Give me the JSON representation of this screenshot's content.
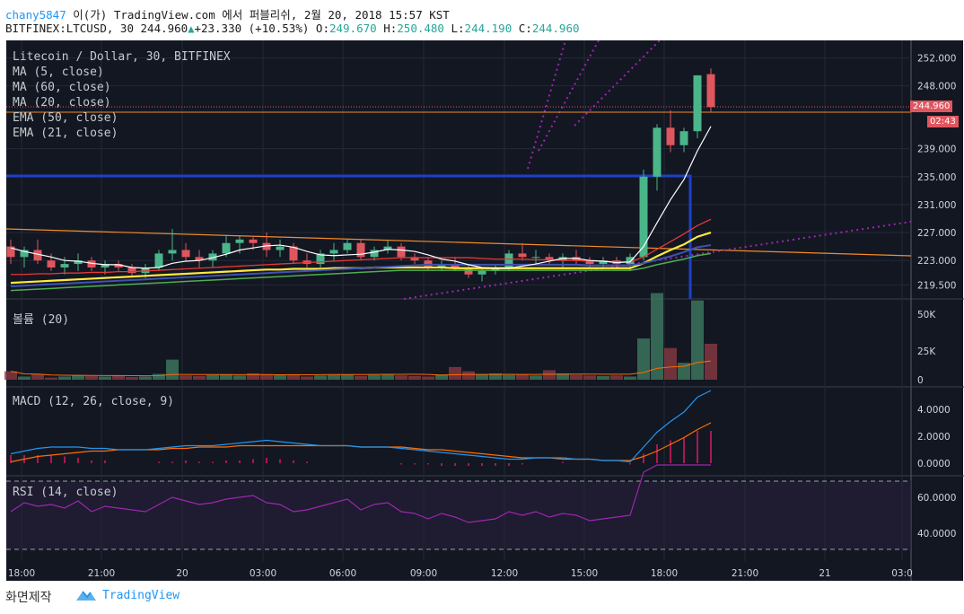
{
  "header": {
    "user": "chany5847",
    "title_rest": " 이(가) TradingView.com 에서 퍼블리쉬, 2월 20, 2018 15:57 KST",
    "symbol": "BITFINEX:LTCUSD, 30",
    "last": "244.960",
    "change": "+23.330 (+10.53%)",
    "open_label": "O:",
    "open": "249.670",
    "high_label": "H:",
    "high": "250.480",
    "low_label": "L:",
    "low": "244.190",
    "close_label": "C:",
    "close": "244.960"
  },
  "main_legend": [
    "Litecoin / Dollar, 30, BITFINEX",
    "MA (5, close)",
    "MA (60, close)",
    "MA (20, close)",
    "EMA (50, close)",
    "EMA (21, close)"
  ],
  "price_axis": [
    "252.000",
    "248.000",
    "244.960",
    "239.000",
    "235.000",
    "231.000",
    "227.000",
    "223.000",
    "219.500"
  ],
  "price_tag": "244.960",
  "countdown_tag": "02:43",
  "volume": {
    "label": "볼륨 (20)",
    "ticks": [
      "50K",
      "25K",
      "0"
    ]
  },
  "macd": {
    "label": "MACD (12, 26, close, 9)",
    "ticks": [
      "4.0000",
      "2.0000",
      "0.0000"
    ]
  },
  "rsi": {
    "label": "RSI (14, close)",
    "ticks": [
      "60.0000",
      "40.0000"
    ]
  },
  "time_axis": [
    "18:00",
    "21:00",
    "20",
    "03:00",
    "06:00",
    "09:00",
    "12:00",
    "15:00",
    "18:00",
    "21:00",
    "21",
    "03:0"
  ],
  "footer": {
    "screenshot_label": "화면제작",
    "brand": "TradingView"
  },
  "colors": {
    "background": "#131722",
    "up": "#4bb58a",
    "down": "#e0565f",
    "ma5": "#ffffff",
    "ma20": "#e53935",
    "ma60": "#3f51b5",
    "ema21": "#ffeb3b",
    "ema50": "#4caf50",
    "box": "#1e40c8",
    "trend": "#f28c28",
    "fib": "#9c27b0",
    "macd": "#2196f3",
    "signal": "#ff6d00",
    "rsi": "#9c27b0"
  },
  "chart_data": {
    "type": "candlestick",
    "symbol": "BITFINEX:LTCUSD",
    "interval": "30",
    "ohlc": [
      [
        225.0,
        226.0,
        222.5,
        223.5
      ],
      [
        223.5,
        225.0,
        222.0,
        224.5
      ],
      [
        224.5,
        226.0,
        222.5,
        223.0
      ],
      [
        223.0,
        224.0,
        221.5,
        222.0
      ],
      [
        222.0,
        223.5,
        221.0,
        222.5
      ],
      [
        222.5,
        224.0,
        221.5,
        223.0
      ],
      [
        223.0,
        223.5,
        221.5,
        222.0
      ],
      [
        222.0,
        223.0,
        221.0,
        222.5
      ],
      [
        222.5,
        223.0,
        221.5,
        222.0
      ],
      [
        222.0,
        222.5,
        220.8,
        221.2
      ],
      [
        221.2,
        222.5,
        220.5,
        222.0
      ],
      [
        222.0,
        224.5,
        221.5,
        224.0
      ],
      [
        224.0,
        227.5,
        223.0,
        224.5
      ],
      [
        224.5,
        225.5,
        223.0,
        223.5
      ],
      [
        223.5,
        224.5,
        222.0,
        223.0
      ],
      [
        223.0,
        224.5,
        222.0,
        224.0
      ],
      [
        224.0,
        226.5,
        223.5,
        225.5
      ],
      [
        225.5,
        226.5,
        224.0,
        226.0
      ],
      [
        226.0,
        226.5,
        224.5,
        225.5
      ],
      [
        225.5,
        227.0,
        223.5,
        224.5
      ],
      [
        224.5,
        226.0,
        223.5,
        225.0
      ],
      [
        225.0,
        225.5,
        222.5,
        223.0
      ],
      [
        223.0,
        224.0,
        222.0,
        222.5
      ],
      [
        222.5,
        224.5,
        222.0,
        224.0
      ],
      [
        224.0,
        225.5,
        223.0,
        224.5
      ],
      [
        224.5,
        226.0,
        224.0,
        225.5
      ],
      [
        225.5,
        226.0,
        223.0,
        223.5
      ],
      [
        223.5,
        225.0,
        223.0,
        224.5
      ],
      [
        224.5,
        226.0,
        224.0,
        225.0
      ],
      [
        225.0,
        225.5,
        223.0,
        223.5
      ],
      [
        223.5,
        224.0,
        222.5,
        223.0
      ],
      [
        223.0,
        223.5,
        221.5,
        222.0
      ],
      [
        222.0,
        223.0,
        221.5,
        222.5
      ],
      [
        222.5,
        223.5,
        221.5,
        222.0
      ],
      [
        222.0,
        222.5,
        220.5,
        221.0
      ],
      [
        221.0,
        222.0,
        220.0,
        221.5
      ],
      [
        221.5,
        222.5,
        221.0,
        222.0
      ],
      [
        222.0,
        224.5,
        221.5,
        224.0
      ],
      [
        224.0,
        225.5,
        223.0,
        223.5
      ],
      [
        223.5,
        224.5,
        222.5,
        223.5
      ],
      [
        223.5,
        224.0,
        222.5,
        223.0
      ],
      [
        223.0,
        224.0,
        222.0,
        223.5
      ],
      [
        223.5,
        224.5,
        222.5,
        223.0
      ],
      [
        223.0,
        223.5,
        222.0,
        222.5
      ],
      [
        222.5,
        223.5,
        222.0,
        223.0
      ],
      [
        223.0,
        223.5,
        222.0,
        222.5
      ],
      [
        222.5,
        224.0,
        221.5,
        223.5
      ],
      [
        223.5,
        236.0,
        223.0,
        235.0
      ],
      [
        235.0,
        242.5,
        233.0,
        242.0
      ],
      [
        242.0,
        244.5,
        238.5,
        239.5
      ],
      [
        239.5,
        242.0,
        238.5,
        241.5
      ],
      [
        241.5,
        249.5,
        240.5,
        249.5
      ],
      [
        249.67,
        250.48,
        244.19,
        244.96
      ]
    ],
    "volume": [
      8000,
      3000,
      5000,
      2000,
      3000,
      4000,
      3500,
      3000,
      4000,
      2500,
      3000,
      5500,
      19000,
      4000,
      3500,
      4500,
      5000,
      4000,
      6000,
      5000,
      4500,
      5000,
      3000,
      4000,
      4500,
      5000,
      3500,
      4500,
      5000,
      4000,
      3500,
      3000,
      5000,
      12000,
      8000,
      5000,
      6000,
      4500,
      5000,
      4000,
      9000,
      6000,
      4500,
      4000,
      3500,
      4000,
      3000,
      39000,
      82000,
      30000,
      16000,
      75000,
      34000
    ],
    "ma5": [
      224.8,
      224.3,
      223.9,
      223.5,
      223.0,
      222.9,
      222.6,
      222.4,
      222.4,
      222.0,
      221.9,
      222.0,
      222.6,
      222.9,
      223.0,
      223.4,
      223.9,
      224.5,
      224.8,
      225.1,
      225.2,
      224.9,
      224.3,
      223.8,
      223.7,
      223.8,
      223.9,
      224.2,
      224.6,
      224.5,
      224.3,
      223.8,
      223.2,
      222.9,
      222.4,
      222.0,
      221.9,
      221.9,
      222.2,
      222.5,
      222.9,
      223.3,
      223.3,
      223.0,
      222.9,
      222.7,
      222.8,
      225.0,
      228.4,
      231.7,
      234.6,
      238.7,
      242.2
    ],
    "ma20": [
      221.0,
      221.0,
      221.1,
      221.1,
      221.2,
      221.2,
      221.3,
      221.3,
      221.4,
      221.4,
      221.5,
      221.6,
      221.7,
      221.8,
      221.9,
      222.0,
      222.1,
      222.2,
      222.3,
      222.4,
      222.5,
      222.6,
      222.7,
      222.8,
      222.9,
      223.0,
      223.1,
      223.2,
      223.3,
      223.4,
      223.4,
      223.4,
      223.4,
      223.4,
      223.4,
      223.3,
      223.2,
      223.2,
      223.2,
      223.1,
      223.1,
      223.0,
      223.0,
      222.9,
      222.9,
      222.8,
      222.8,
      223.5,
      224.6,
      225.7,
      226.8,
      228.0,
      228.9
    ],
    "ma60": [
      219.3,
      219.4,
      219.5,
      219.6,
      219.7,
      219.8,
      219.9,
      220.0,
      220.1,
      220.2,
      220.3,
      220.4,
      220.5,
      220.6,
      220.7,
      220.8,
      220.9,
      221.0,
      221.1,
      221.2,
      221.3,
      221.4,
      221.5,
      221.6,
      221.7,
      221.8,
      221.9,
      222.0,
      222.1,
      222.2,
      222.3,
      222.4,
      222.4,
      222.4,
      222.4,
      222.4,
      222.4,
      222.4,
      222.4,
      222.4,
      222.4,
      222.4,
      222.4,
      222.3,
      222.3,
      222.3,
      222.3,
      222.6,
      223.1,
      223.6,
      224.2,
      224.9,
      225.2
    ],
    "ema21": [
      219.8,
      219.9,
      220.0,
      220.1,
      220.2,
      220.3,
      220.4,
      220.5,
      220.6,
      220.7,
      220.8,
      220.9,
      221.0,
      221.1,
      221.2,
      221.3,
      221.4,
      221.5,
      221.6,
      221.7,
      221.7,
      221.8,
      221.8,
      221.8,
      221.9,
      221.9,
      221.9,
      222.0,
      222.0,
      222.0,
      222.0,
      222.0,
      222.0,
      221.9,
      221.9,
      221.9,
      221.9,
      221.9,
      221.9,
      221.9,
      221.9,
      221.9,
      221.9,
      221.9,
      221.9,
      221.9,
      221.9,
      222.6,
      223.6,
      224.5,
      225.3,
      226.4,
      227.0
    ],
    "ema50": [
      218.7,
      218.8,
      218.9,
      219.0,
      219.1,
      219.2,
      219.3,
      219.4,
      219.5,
      219.6,
      219.7,
      219.8,
      219.9,
      220.0,
      220.1,
      220.2,
      220.3,
      220.4,
      220.5,
      220.6,
      220.7,
      220.8,
      220.9,
      221.0,
      221.1,
      221.2,
      221.3,
      221.4,
      221.5,
      221.6,
      221.6,
      221.6,
      221.6,
      221.6,
      221.6,
      221.6,
      221.6,
      221.6,
      221.6,
      221.6,
      221.6,
      221.6,
      221.6,
      221.6,
      221.6,
      221.6,
      221.6,
      221.9,
      222.4,
      222.8,
      223.2,
      223.7,
      224.0
    ],
    "macd_line": [
      0.7,
      0.9,
      1.1,
      1.2,
      1.2,
      1.2,
      1.1,
      1.1,
      1.0,
      1.0,
      1.0,
      1.1,
      1.2,
      1.3,
      1.3,
      1.3,
      1.4,
      1.5,
      1.6,
      1.7,
      1.6,
      1.5,
      1.4,
      1.3,
      1.3,
      1.3,
      1.2,
      1.2,
      1.2,
      1.1,
      1.0,
      0.9,
      0.8,
      0.7,
      0.6,
      0.5,
      0.4,
      0.3,
      0.3,
      0.4,
      0.4,
      0.4,
      0.3,
      0.3,
      0.2,
      0.2,
      0.1,
      1.2,
      2.3,
      3.1,
      3.8,
      4.9,
      5.4
    ],
    "macd_signal": [
      0.1,
      0.3,
      0.5,
      0.6,
      0.7,
      0.8,
      0.9,
      0.9,
      1.0,
      1.0,
      1.0,
      1.0,
      1.1,
      1.1,
      1.2,
      1.2,
      1.2,
      1.3,
      1.3,
      1.3,
      1.3,
      1.3,
      1.3,
      1.3,
      1.3,
      1.3,
      1.2,
      1.2,
      1.2,
      1.2,
      1.1,
      1.0,
      1.0,
      0.9,
      0.8,
      0.7,
      0.6,
      0.5,
      0.4,
      0.4,
      0.4,
      0.3,
      0.3,
      0.3,
      0.2,
      0.2,
      0.2,
      0.5,
      0.9,
      1.4,
      1.9,
      2.5,
      3.0
    ],
    "rsi": [
      52,
      57,
      55,
      56,
      54,
      58,
      52,
      55,
      54,
      53,
      52,
      56,
      60,
      58,
      56,
      57,
      59,
      60,
      61,
      57,
      56,
      52,
      53,
      55,
      57,
      59,
      53,
      56,
      57,
      52,
      51,
      48,
      51,
      49,
      46,
      47,
      48,
      52,
      50,
      52,
      49,
      51,
      50,
      47,
      48,
      49,
      50,
      74,
      83,
      80,
      79,
      84,
      80
    ],
    "price_range": [
      217.5,
      254.5
    ],
    "x_range_start": "18:00 (2월 19)",
    "x_step_minutes": 30
  }
}
